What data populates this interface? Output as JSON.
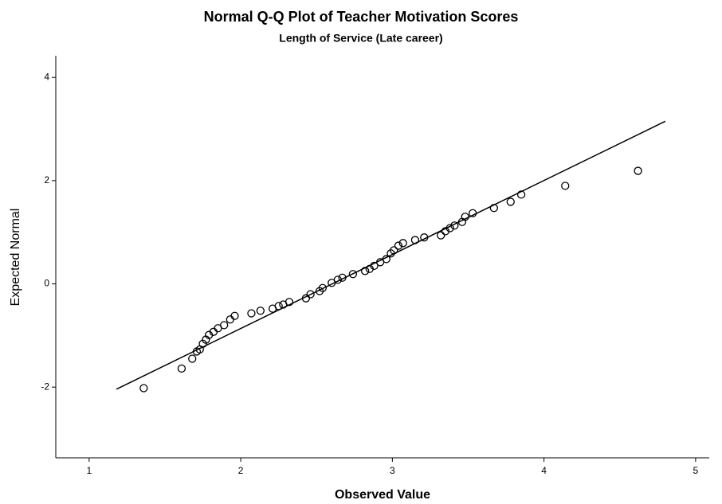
{
  "chart_data": {
    "type": "scatter",
    "title": "Normal Q-Q Plot of Teacher Motivation Scores",
    "subtitle": "Length of Service (Late career)",
    "x_label": "Observed Value",
    "y_label": "Expected Normal",
    "xlim": [
      0.78,
      5.09
    ],
    "xticks": [
      1,
      2,
      3,
      4,
      5
    ],
    "ylim": [
      -3.37,
      4.42
    ],
    "yticks": [
      -2,
      0,
      2,
      4
    ],
    "grid": false,
    "series": [
      {
        "type": "scatter",
        "color": "#000000",
        "x": [
          1.36,
          1.61,
          1.68,
          1.71,
          1.73,
          1.75,
          1.77,
          1.79,
          1.82,
          1.85,
          1.89,
          1.93,
          1.96,
          2.07,
          2.13,
          2.21,
          2.25,
          2.28,
          2.32,
          2.43,
          2.46,
          2.52,
          2.54,
          2.6,
          2.64,
          2.67,
          2.74,
          2.82,
          2.85,
          2.88,
          2.92,
          2.96,
          2.99,
          3.01,
          3.04,
          3.07,
          3.15,
          3.21,
          3.32,
          3.35,
          3.38,
          3.41,
          3.46,
          3.48,
          3.53,
          3.67,
          3.78,
          3.85,
          4.14,
          4.62
        ],
        "values": [
          -2.02,
          -1.64,
          -1.45,
          -1.31,
          -1.27,
          -1.16,
          -1.08,
          -0.99,
          -0.93,
          -0.86,
          -0.8,
          -0.69,
          -0.62,
          -0.57,
          -0.52,
          -0.48,
          -0.43,
          -0.4,
          -0.35,
          -0.28,
          -0.2,
          -0.14,
          -0.08,
          0.02,
          0.08,
          0.12,
          0.19,
          0.25,
          0.29,
          0.35,
          0.42,
          0.48,
          0.59,
          0.65,
          0.74,
          0.79,
          0.85,
          0.9,
          0.94,
          1.02,
          1.08,
          1.13,
          1.2,
          1.3,
          1.37,
          1.47,
          1.59,
          1.73,
          1.9,
          2.19
        ]
      },
      {
        "type": "line",
        "color": "#000000",
        "x": [
          1.18,
          4.8
        ],
        "values": [
          -2.04,
          3.15
        ]
      }
    ]
  }
}
